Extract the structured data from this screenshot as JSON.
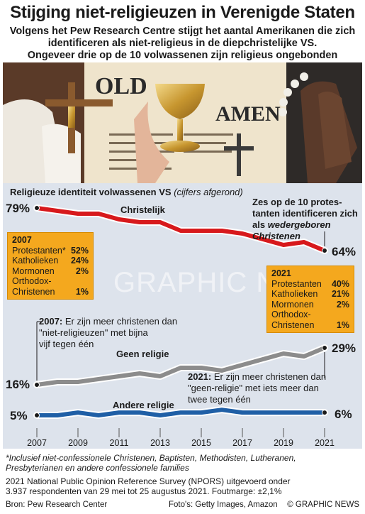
{
  "header": {
    "title": "Stijging niet-religieuzen in Verenigde Staten",
    "subtitle_lines": [
      "Volgens het Pew Research Centre stijgt het aantal Amerikanen die zich",
      "identificeren als niet-religieus in de diepchristelijke VS.",
      "Ongeveer drie op de 10 volwassenen zijn religieus ongebonden"
    ]
  },
  "chart": {
    "title": "Religieuze identiteit volwassenen VS",
    "title_note": "(cijfers afgerond)",
    "watermark": "GRAPHIC NEWS",
    "callout_right": [
      "Zes op de 10 protes-",
      "tanten identificeren zich",
      "als ",
      "wedergeboren",
      "Christenen"
    ],
    "box_2007": {
      "year": "2007",
      "rows": [
        {
          "label": "Protestanten*",
          "value": "52%"
        },
        {
          "label": "Katholieken",
          "value": "24%"
        },
        {
          "label": "Mormonen",
          "value": "2%"
        },
        {
          "label": "Orthodox-",
          "value": ""
        },
        {
          "label": "Christenen",
          "value": "1%"
        }
      ]
    },
    "box_2021": {
      "year": "2021",
      "rows": [
        {
          "label": "Protestanten",
          "value": "40%"
        },
        {
          "label": "Katholieken",
          "value": "21%"
        },
        {
          "label": "Mormonen",
          "value": "2%"
        },
        {
          "label": "Orthodox-",
          "value": ""
        },
        {
          "label": "Christenen",
          "value": "1%"
        }
      ]
    },
    "annotation_2007": {
      "year": "2007:",
      "lines": [
        " Er zijn meer christenen dan",
        "\"niet-religieuzen\" met bijna",
        "vijf tegen één"
      ]
    },
    "annotation_2021": {
      "year": "2021:",
      "lines": [
        " Er zijn meer christenen dan",
        "\"geen-religie\" met iets meer dan",
        "twee tegen één"
      ]
    },
    "labels": {
      "christian_start": "79%",
      "christian_end": "64%",
      "none_start": "16%",
      "none_end": "29%",
      "other_start": "5%",
      "other_end": "6%"
    }
  },
  "chart_data": {
    "type": "line",
    "title": "Religieuze identiteit volwassenen VS",
    "x": [
      2007,
      2008,
      2009,
      2010,
      2011,
      2012,
      2013,
      2014,
      2015,
      2016,
      2017,
      2018,
      2019,
      2020,
      2021
    ],
    "x_ticks": [
      "2007",
      "2009",
      "2011",
      "2013",
      "2015",
      "2017",
      "2019",
      "2021"
    ],
    "series": [
      {
        "name": "Christelijk",
        "color": "#d7191c",
        "values": [
          79,
          78,
          77,
          77,
          75,
          74,
          74,
          71,
          71,
          71,
          70,
          68,
          66,
          67,
          64
        ]
      },
      {
        "name": "Geen religie",
        "color": "#8c8c8c",
        "values": [
          16,
          17,
          17,
          18,
          19,
          20,
          19,
          22,
          22,
          21,
          23,
          25,
          27,
          26,
          29
        ]
      },
      {
        "name": "Andere religie",
        "color": "#1f5fa6",
        "values": [
          5,
          5,
          6,
          5,
          6,
          6,
          5,
          6,
          6,
          7,
          6,
          6,
          6,
          6,
          6
        ]
      }
    ],
    "ylim": [
      0,
      85
    ],
    "grid": false
  },
  "footer": {
    "footnote_lines": [
      "*Inclusief niet-confessionele Christenen, Baptisten, Methodisten, Lutheranen,",
      "Presbyterianen en andere confessionele families"
    ],
    "survey_lines": [
      "2021 National Public Opinion Reference Survey (NPORS) uitgevoerd onder",
      "3.937 respondenten van 29 mei tot 25 augustus 2021. Foutmarge: ±2,1%"
    ],
    "source": "Bron: Pew Research Center",
    "photo_credit": "Foto's: Getty Images, Amazon",
    "brand": "© GRAPHIC NEWS"
  }
}
